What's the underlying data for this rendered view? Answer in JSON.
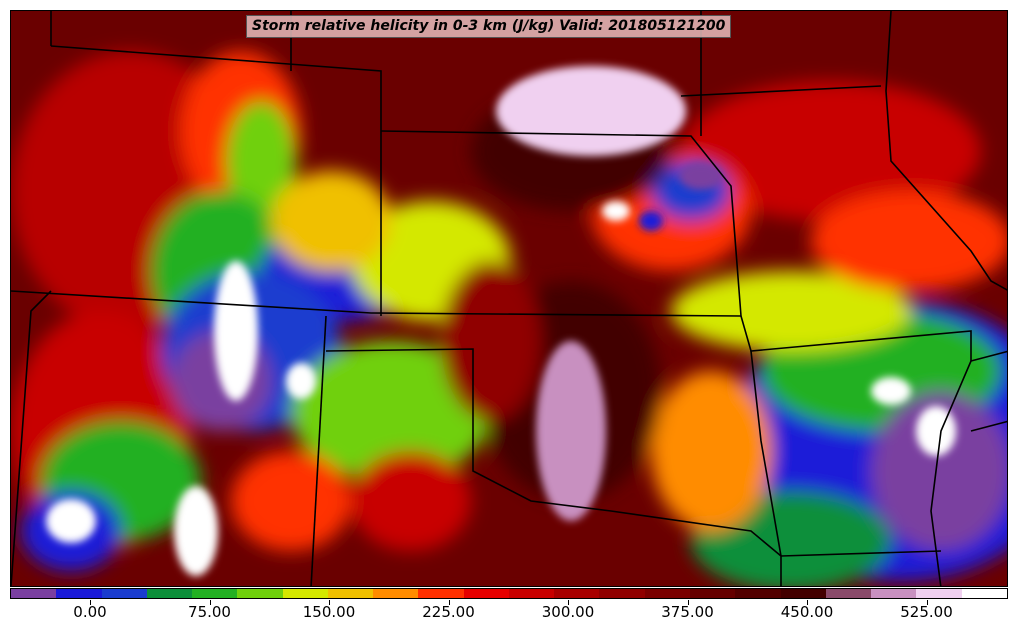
{
  "title": "Storm relative helicity in 0-3 km (J/kg) Valid: 201805121200",
  "colorbar": {
    "colors": [
      "#7a3fa0",
      "#1a1ad8",
      "#1a3ccf",
      "#0c8f3a",
      "#22b022",
      "#6fd00c",
      "#d4e800",
      "#f0c000",
      "#ff8c00",
      "#ff3000",
      "#e60000",
      "#c80000",
      "#a80000",
      "#900000",
      "#7a0000",
      "#650000",
      "#520000",
      "#430000",
      "#8a4a6a",
      "#c890c0",
      "#f0d0f0",
      "#ffffff"
    ],
    "tick_labels": [
      "0.00",
      "75.00",
      "150.00",
      "225.00",
      "300.00",
      "375.00",
      "450.00",
      "525.00"
    ]
  },
  "legend_colors": {
    "high": "#ffffff",
    "mid": "#c80000",
    "low": "#1a1ad8"
  }
}
